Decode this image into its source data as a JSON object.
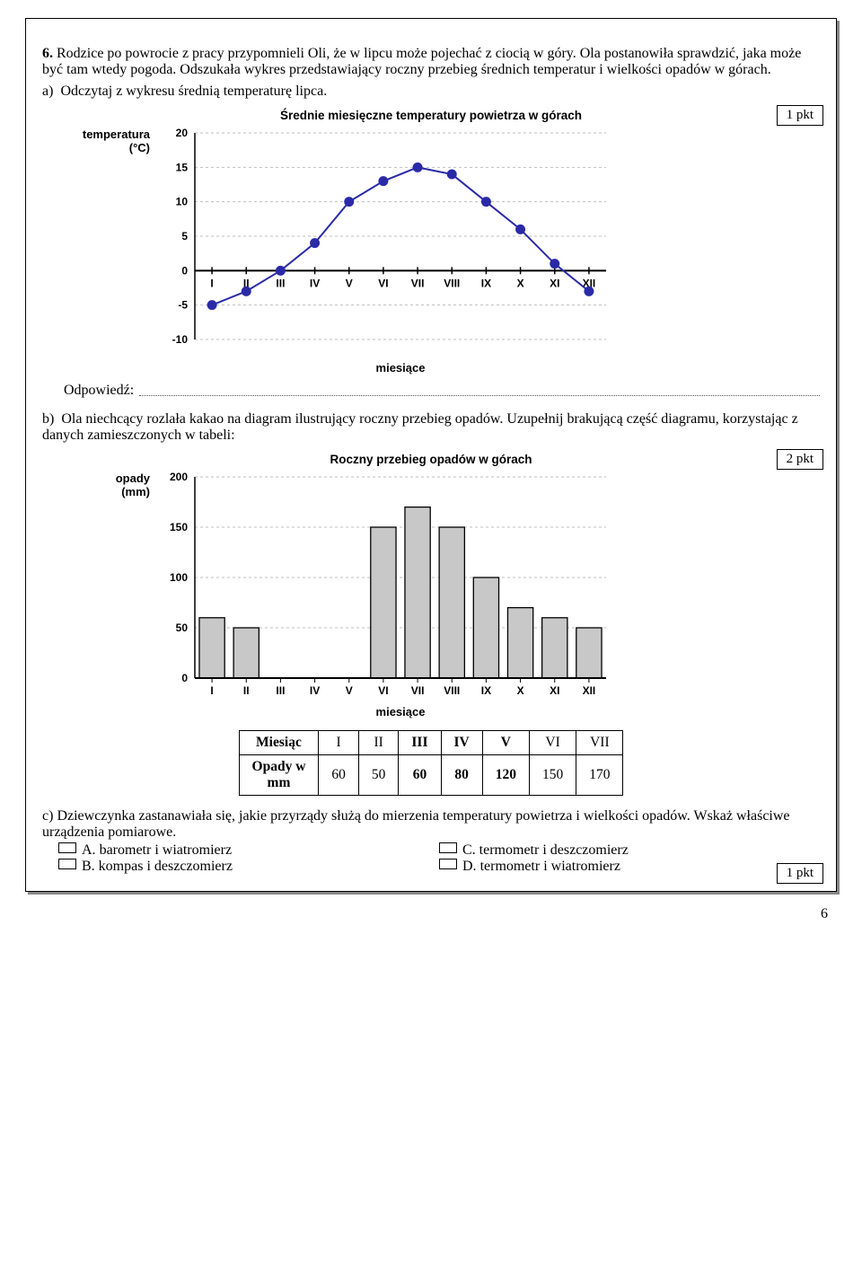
{
  "task": {
    "number": "6.",
    "intro": "Rodzice po powrocie z pracy przypomnieli Oli, że w lipcu może pojechać z ciocią w góry. Ola postanowiła sprawdzić, jaka może być tam wtedy pogoda. Odszukała wykres przedstawiający roczny przebieg średnich temperatur i wielkości opadów w górach."
  },
  "partA": {
    "prefix": "a)",
    "text": "Odczytaj z wykresu średnią temperaturę lipca.",
    "points_label": "1 pkt",
    "answer_label": "Odpowiedź:"
  },
  "tempChart": {
    "title": "Średnie miesięczne temperatury powietrza w górach",
    "y_label_line1": "temperatura",
    "y_label_line2": "(°C)",
    "x_label": "miesiące",
    "x_categories": [
      "I",
      "II",
      "III",
      "IV",
      "V",
      "VI",
      "VII",
      "VIII",
      "IX",
      "X",
      "XI",
      "XII"
    ],
    "y_ticks": [
      -10,
      -5,
      0,
      5,
      10,
      15,
      20
    ],
    "ylim": [
      -10,
      20
    ],
    "values": [
      -5,
      -3,
      0,
      4,
      10,
      13,
      15,
      14,
      10,
      6,
      1,
      -3
    ],
    "line_color": "#2a2aa8",
    "marker_color": "#2a2aa8",
    "marker_size": 5,
    "line_width": 2,
    "grid_color": "#bfbfbf",
    "background": "#ffffff",
    "axis_color": "#000000",
    "label_fontsize": 13,
    "tick_fontsize": 12
  },
  "partB": {
    "prefix": "b)",
    "text": "Ola niechcący rozlała kakao na diagram ilustrujący roczny przebieg opadów. Uzupełnij brakującą część diagramu, korzystając z danych zamieszczonych w tabeli:",
    "points_label": "2 pkt"
  },
  "rainChart": {
    "title": "Roczny przebieg opadów w górach",
    "y_label_line1": "opady",
    "y_label_line2": "(mm)",
    "x_label": "miesiące",
    "x_categories": [
      "I",
      "II",
      "III",
      "IV",
      "V",
      "VI",
      "VII",
      "VIII",
      "IX",
      "X",
      "XI",
      "XII"
    ],
    "y_ticks": [
      0,
      50,
      100,
      150,
      200
    ],
    "ylim": [
      0,
      200
    ],
    "values": [
      60,
      50,
      null,
      null,
      null,
      150,
      170,
      150,
      100,
      70,
      60,
      50
    ],
    "bar_fill": "#c8c8c8",
    "bar_stroke": "#000000",
    "bar_width_ratio": 0.74,
    "grid_color": "#bfbfbf",
    "background": "#ffffff",
    "label_fontsize": 13,
    "tick_fontsize": 12
  },
  "table": {
    "header_label": "Miesiąc",
    "rows_label": "Opady w mm",
    "columns": [
      "I",
      "II",
      "III",
      "IV",
      "V",
      "VI",
      "VII"
    ],
    "values": [
      60,
      50,
      60,
      80,
      120,
      150,
      170
    ],
    "bold_cols": [
      2,
      3,
      4
    ]
  },
  "partC": {
    "prefix": "c)",
    "text": "Dziewczynka zastanawiała się, jakie przyrządy służą do mierzenia temperatury powietrza i wielkości opadów. Wskaż właściwe urządzenia pomiarowe.",
    "points_label": "1 pkt",
    "options": {
      "A": "barometr i wiatromierz",
      "B": "kompas i deszczomierz",
      "C": "termometr i deszczomierz",
      "D": "termometr i wiatromierz"
    }
  },
  "page_number": "6"
}
